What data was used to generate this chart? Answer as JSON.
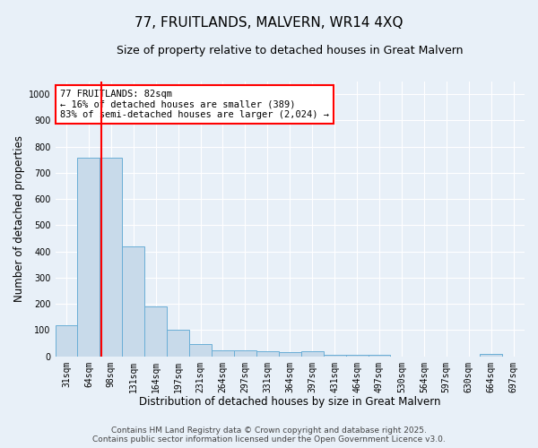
{
  "title": "77, FRUITLANDS, MALVERN, WR14 4XQ",
  "subtitle": "Size of property relative to detached houses in Great Malvern",
  "xlabel": "Distribution of detached houses by size in Great Malvern",
  "ylabel": "Number of detached properties",
  "bin_labels": [
    "31sqm",
    "64sqm",
    "98sqm",
    "131sqm",
    "164sqm",
    "197sqm",
    "231sqm",
    "264sqm",
    "297sqm",
    "331sqm",
    "364sqm",
    "397sqm",
    "431sqm",
    "464sqm",
    "497sqm",
    "530sqm",
    "564sqm",
    "597sqm",
    "630sqm",
    "664sqm",
    "697sqm"
  ],
  "bar_values": [
    117,
    757,
    757,
    420,
    190,
    100,
    47,
    22,
    22,
    20,
    15,
    18,
    5,
    5,
    5,
    0,
    0,
    0,
    0,
    8,
    0
  ],
  "bar_color": "#c8daea",
  "bar_edge_color": "#6aaed6",
  "property_line_x": 1.55,
  "property_line_color": "red",
  "annotation_text": "77 FRUITLANDS: 82sqm\n← 16% of detached houses are smaller (389)\n83% of semi-detached houses are larger (2,024) →",
  "annotation_box_facecolor": "white",
  "annotation_box_edgecolor": "red",
  "ylim": [
    0,
    1050
  ],
  "yticks": [
    0,
    100,
    200,
    300,
    400,
    500,
    600,
    700,
    800,
    900,
    1000
  ],
  "footer_line1": "Contains HM Land Registry data © Crown copyright and database right 2025.",
  "footer_line2": "Contains public sector information licensed under the Open Government Licence v3.0.",
  "background_color": "#e8f0f8",
  "plot_bg_color": "#e8f0f8",
  "grid_color": "#ffffff",
  "title_fontsize": 11,
  "subtitle_fontsize": 9,
  "axis_label_fontsize": 8.5,
  "tick_fontsize": 7,
  "annotation_fontsize": 7.5,
  "footer_fontsize": 6.5
}
